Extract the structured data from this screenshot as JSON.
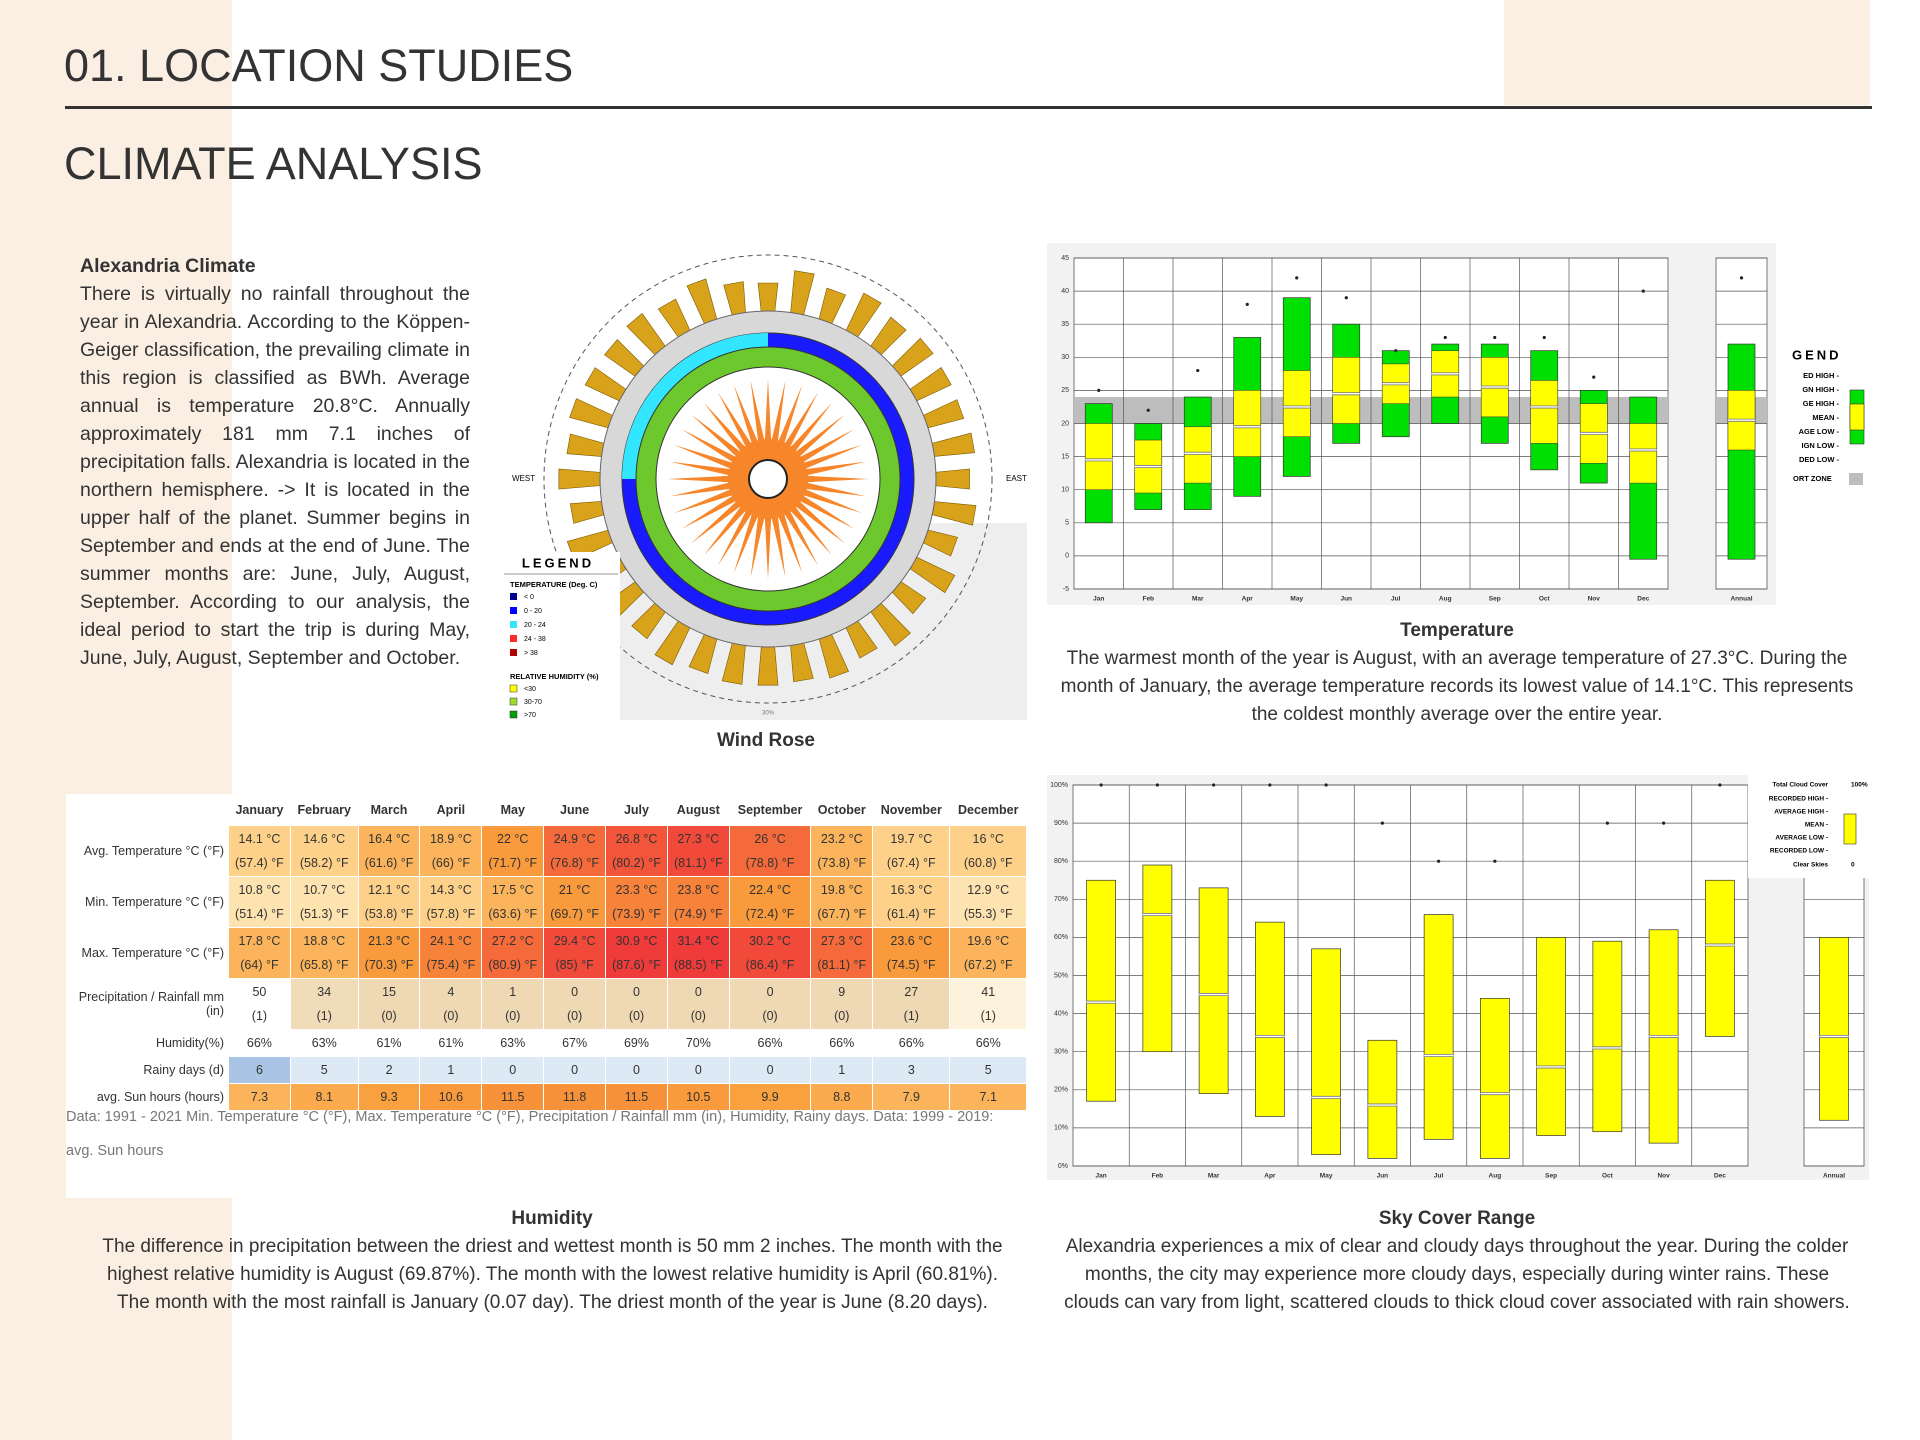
{
  "header": {
    "title": "01. LOCATION STUDIES",
    "subtitle": "CLIMATE ANALYSIS"
  },
  "intro": {
    "heading": "Alexandria Climate",
    "body": "There is virtually no rainfall throughout the year in Alexandria. According to the Köppen-Geiger classification, the prevailing climate in this region is classified as BWh. Average annual is temperature 20.8°C. Annually approximately 181 mm 7.1 inches of precipitation falls. Alexandria is located in the northern hemisphere. -> It is located in the upper half of the planet. Summer begins in September and ends at the end of June. The summer months are: June, July, August, September. According to our analysis, the ideal period to start the trip is during May, June, July, August, September and October."
  },
  "wind_rose": {
    "caption": "Wind Rose",
    "west": "WEST",
    "east": "EAST",
    "scale_label": "30%",
    "legend": {
      "title": "LEGEND",
      "temperature_heading": "TEMPERATURE (Deg. C)",
      "temperature_items": [
        "< 0",
        "0  -  20",
        "20  -  24",
        "24  -  38",
        "> 38"
      ],
      "temperature_colors": [
        "#00008b",
        "#0000ff",
        "#33e6ff",
        "#ff2a2a",
        "#b00000"
      ],
      "humidity_heading": "RELATIVE HUMIDITY (%)",
      "humidity_items": [
        "<30",
        "30-70",
        ">70"
      ],
      "humidity_colors": [
        "#ffff00",
        "#9bdc2c",
        "#00a000"
      ]
    }
  },
  "chart_data": [
    {
      "type": "box",
      "title": "Temperature",
      "description": "The warmest month of the year is August, with an average temperature of 27.3°C. During the month of January, the average temperature records its lowest value of 14.1°C. This represents the coldest monthly average over the entire year.",
      "categories": [
        "Jan",
        "Feb",
        "Mar",
        "Apr",
        "May",
        "Jun",
        "Jul",
        "Aug",
        "Sep",
        "Oct",
        "Nov",
        "Dec",
        "Annual"
      ],
      "low": [
        5,
        7,
        7,
        9,
        12,
        17,
        18,
        20,
        17,
        13,
        11,
        -0.5,
        -0.5
      ],
      "lower": [
        10,
        9.5,
        11,
        15,
        18,
        20,
        23,
        24,
        21,
        17,
        14,
        11,
        16
      ],
      "mean": [
        14.5,
        13.5,
        15.5,
        19.5,
        22.5,
        24.5,
        26,
        27.5,
        25.5,
        22.5,
        18.5,
        16,
        20.5
      ],
      "upper": [
        20,
        17.5,
        19.5,
        25,
        28,
        30,
        29,
        31,
        30,
        26.5,
        23,
        20,
        25
      ],
      "high": [
        23,
        20,
        24,
        33,
        39,
        35,
        31,
        32,
        32,
        31,
        25,
        24,
        32
      ],
      "dot": [
        25,
        22,
        28,
        38,
        42,
        39,
        31,
        33,
        33,
        33,
        27,
        40,
        42
      ],
      "color": "#00e000",
      "inner_color": "#ffff00",
      "comfort_zone": [
        20,
        24
      ],
      "comfort_color": "#bdbdbd",
      "ylim": [
        -5,
        45
      ],
      "yticks": [
        -5,
        0,
        5,
        10,
        15,
        20,
        25,
        30,
        35,
        40,
        45
      ],
      "grid": true,
      "legend_title": "GEND",
      "legend_items": [
        "ED HIGH -",
        "GN HIGH -",
        "GE HIGH -",
        "MEAN -",
        "AGE LOW -",
        "IGN LOW -",
        "DED LOW -"
      ],
      "legend_zone": "ORT ZONE"
    },
    {
      "type": "box",
      "title": "Sky Cover Range",
      "description": "Alexandria experiences a mix of clear and cloudy days throughout the year. During the colder months, the city may experience more cloudy days, especially during winter rains. These clouds can vary from light, scattered clouds to thick cloud cover associated with rain showers.",
      "categories": [
        "Jan",
        "Feb",
        "Mar",
        "Apr",
        "May",
        "Jun",
        "Jul",
        "Aug",
        "Sep",
        "Oct",
        "Nov",
        "Dec",
        "Annual"
      ],
      "low": [
        17,
        30,
        19,
        13,
        3,
        2,
        7,
        2,
        8,
        9,
        6,
        34,
        12
      ],
      "mean": [
        43,
        66,
        45,
        34,
        18,
        16,
        29,
        19,
        26,
        31,
        34,
        58,
        34
      ],
      "high": [
        75,
        79,
        73,
        64,
        57,
        33,
        66,
        44,
        60,
        59,
        62,
        75,
        60
      ],
      "dot": [
        100,
        100,
        100,
        100,
        100,
        90,
        80,
        80,
        null,
        90,
        90,
        100,
        null
      ],
      "color": "#ffff00",
      "ylim": [
        0,
        100
      ],
      "yticks": [
        {
          "value": 0,
          "label": "0%"
        },
        {
          "value": 10,
          "label": "10%"
        },
        {
          "value": 20,
          "label": "20%"
        },
        {
          "value": 30,
          "label": "30%"
        },
        {
          "value": 40,
          "label": "40%"
        },
        {
          "value": 50,
          "label": "50%"
        },
        {
          "value": 60,
          "label": "60%"
        },
        {
          "value": 70,
          "label": "70%"
        },
        {
          "value": 80,
          "label": "80%"
        },
        {
          "value": 90,
          "label": "90%"
        },
        {
          "value": 100,
          "label": "100%"
        }
      ],
      "grid": true,
      "legend_top": "Total Cloud Cover",
      "legend_top_value": "100%",
      "legend_items": [
        "RECORDED HIGH -",
        "AVERAGE HIGH -",
        "MEAN -",
        "AVERAGE LOW -",
        "RECORDED LOW -"
      ],
      "legend_bottom": "Clear Skies",
      "legend_bottom_value": "0"
    }
  ],
  "table": {
    "caption": "Humidity",
    "description": "The difference in precipitation between the driest and wettest month is 50 mm 2 inches. The month with the highest relative humidity is August (69.87%). The month with the lowest relative humidity is April (60.81%). The month with the most rainfall is January (0.07 day). The driest month of the year is June (8.20 days).",
    "headers": [
      "January",
      "February",
      "March",
      "April",
      "May",
      "June",
      "July",
      "August",
      "September",
      "October",
      "November",
      "December"
    ],
    "rows": [
      {
        "label": "Avg. Temperature °C (°F)",
        "cells": [
          [
            "14.1 °C",
            "(57.4) °F"
          ],
          [
            "14.6 °C",
            "(58.2) °F"
          ],
          [
            "16.4 °C",
            "(61.6) °F"
          ],
          [
            "18.9 °C",
            "(66) °F"
          ],
          [
            "22 °C",
            "(71.7) °F"
          ],
          [
            "24.9 °C",
            "(76.8) °F"
          ],
          [
            "26.8 °C",
            "(80.2) °F"
          ],
          [
            "27.3 °C",
            "(81.1) °F"
          ],
          [
            "26 °C",
            "(78.8) °F"
          ],
          [
            "23.2 °C",
            "(73.8) °F"
          ],
          [
            "19.7 °C",
            "(67.4) °F"
          ],
          [
            "16 °C",
            "(60.8) °F"
          ]
        ],
        "colors": [
          "#fdd18a",
          "#fdd18a",
          "#fbb45b",
          "#fbb45b",
          "#f99a3c",
          "#f56a3a",
          "#f3553a",
          "#f24a3a",
          "#f56a3a",
          "#fbb45b",
          "#fdd18a",
          "#fdd18a"
        ]
      },
      {
        "label": "Min. Temperature °C (°F)",
        "cells": [
          [
            "10.8 °C",
            "(51.4) °F"
          ],
          [
            "10.7 °C",
            "(51.3) °F"
          ],
          [
            "12.1 °C",
            "(53.8) °F"
          ],
          [
            "14.3 °C",
            "(57.8) °F"
          ],
          [
            "17.5 °C",
            "(63.6) °F"
          ],
          [
            "21 °C",
            "(69.7) °F"
          ],
          [
            "23.3 °C",
            "(73.9) °F"
          ],
          [
            "23.8 °C",
            "(74.9) °F"
          ],
          [
            "22.4 °C",
            "(72.4) °F"
          ],
          [
            "19.8 °C",
            "(67.7) °F"
          ],
          [
            "16.3 °C",
            "(61.4) °F"
          ],
          [
            "12.9 °C",
            "(55.3) °F"
          ]
        ],
        "colors": [
          "#fde3b0",
          "#fde3b0",
          "#fdd18a",
          "#fdd18a",
          "#fbb45b",
          "#f99a3c",
          "#f7823a",
          "#f7823a",
          "#f99a3c",
          "#fbb45b",
          "#fdd18a",
          "#fde3b0"
        ]
      },
      {
        "label": "Max. Temperature °C (°F)",
        "cells": [
          [
            "17.8 °C",
            "(64) °F"
          ],
          [
            "18.8 °C",
            "(65.8) °F"
          ],
          [
            "21.3 °C",
            "(70.3) °F"
          ],
          [
            "24.1 °C",
            "(75.4) °F"
          ],
          [
            "27.2 °C",
            "(80.9) °F"
          ],
          [
            "29.4 °C",
            "(85) °F"
          ],
          [
            "30.9 °C",
            "(87.6) °F"
          ],
          [
            "31.4 °C",
            "(88.5) °F"
          ],
          [
            "30.2 °C",
            "(86.4) °F"
          ],
          [
            "27.3 °C",
            "(81.1) °F"
          ],
          [
            "23.6 °C",
            "(74.5) °F"
          ],
          [
            "19.6 °C",
            "(67.2) °F"
          ]
        ],
        "colors": [
          "#fbb45b",
          "#fbb45b",
          "#f99a3c",
          "#f7823a",
          "#f56a3a",
          "#f24a3a",
          "#ef3b3a",
          "#ef3b3a",
          "#f24a3a",
          "#f56a3a",
          "#f99a3c",
          "#fbb45b"
        ]
      },
      {
        "label": "Precipitation / Rainfall mm (in)",
        "cells": [
          [
            "50",
            "(1)"
          ],
          [
            "34",
            "(1)"
          ],
          [
            "15",
            "(0)"
          ],
          [
            "4",
            "(0)"
          ],
          [
            "1",
            "(0)"
          ],
          [
            "0",
            "(0)"
          ],
          [
            "0",
            "(0)"
          ],
          [
            "0",
            "(0)"
          ],
          [
            "0",
            "(0)"
          ],
          [
            "9",
            "(0)"
          ],
          [
            "27",
            "(1)"
          ],
          [
            "41",
            "(1)"
          ]
        ],
        "colors": [
          "#ffffff",
          "#f1dcba",
          "#efd8b4",
          "#efd8b4",
          "#efd8b4",
          "#efd8b4",
          "#efd8b4",
          "#efd8b4",
          "#efd8b4",
          "#efd8b4",
          "#efd8b4",
          "#fdf3dc"
        ]
      },
      {
        "label": "Humidity(%)",
        "cells": [
          [
            "66%"
          ],
          [
            "63%"
          ],
          [
            "61%"
          ],
          [
            "61%"
          ],
          [
            "63%"
          ],
          [
            "67%"
          ],
          [
            "69%"
          ],
          [
            "70%"
          ],
          [
            "66%"
          ],
          [
            "66%"
          ],
          [
            "66%"
          ],
          [
            "66%"
          ]
        ],
        "colors": [
          "#ffffff",
          "#ffffff",
          "#ffffff",
          "#ffffff",
          "#ffffff",
          "#ffffff",
          "#ffffff",
          "#ffffff",
          "#ffffff",
          "#ffffff",
          "#ffffff",
          "#ffffff"
        ]
      },
      {
        "label": "Rainy days (d)",
        "cells": [
          [
            "6"
          ],
          [
            "5"
          ],
          [
            "2"
          ],
          [
            "1"
          ],
          [
            "0"
          ],
          [
            "0"
          ],
          [
            "0"
          ],
          [
            "0"
          ],
          [
            "0"
          ],
          [
            "1"
          ],
          [
            "3"
          ],
          [
            "5"
          ]
        ],
        "colors": [
          "#a9c4e4",
          "#dde9f5",
          "#dde9f5",
          "#dde9f5",
          "#dde9f5",
          "#dde9f5",
          "#dde9f5",
          "#dde9f5",
          "#dde9f5",
          "#dde9f5",
          "#dde9f5",
          "#dde9f5"
        ]
      },
      {
        "label": "avg. Sun hours (hours)",
        "cells": [
          [
            "7.3"
          ],
          [
            "8.1"
          ],
          [
            "9.3"
          ],
          [
            "10.6"
          ],
          [
            "11.5"
          ],
          [
            "11.8"
          ],
          [
            "11.5"
          ],
          [
            "10.5"
          ],
          [
            "9.9"
          ],
          [
            "8.8"
          ],
          [
            "7.9"
          ],
          [
            "7.1"
          ]
        ],
        "colors": [
          "#fbb45b",
          "#fbaa4e",
          "#f9a03f",
          "#f99a3c",
          "#f7923a",
          "#f7923a",
          "#f7923a",
          "#f99a3c",
          "#f9a03f",
          "#fbaa4e",
          "#fbb45b",
          "#fbb45b"
        ]
      }
    ],
    "note": "Data: 1991 - 2021 Min. Temperature °C (°F), Max. Temperature °C (°F), Precipitation / Rainfall mm (in), Humidity, Rainy days. Data: 1999 - 2019: avg. Sun hours"
  }
}
